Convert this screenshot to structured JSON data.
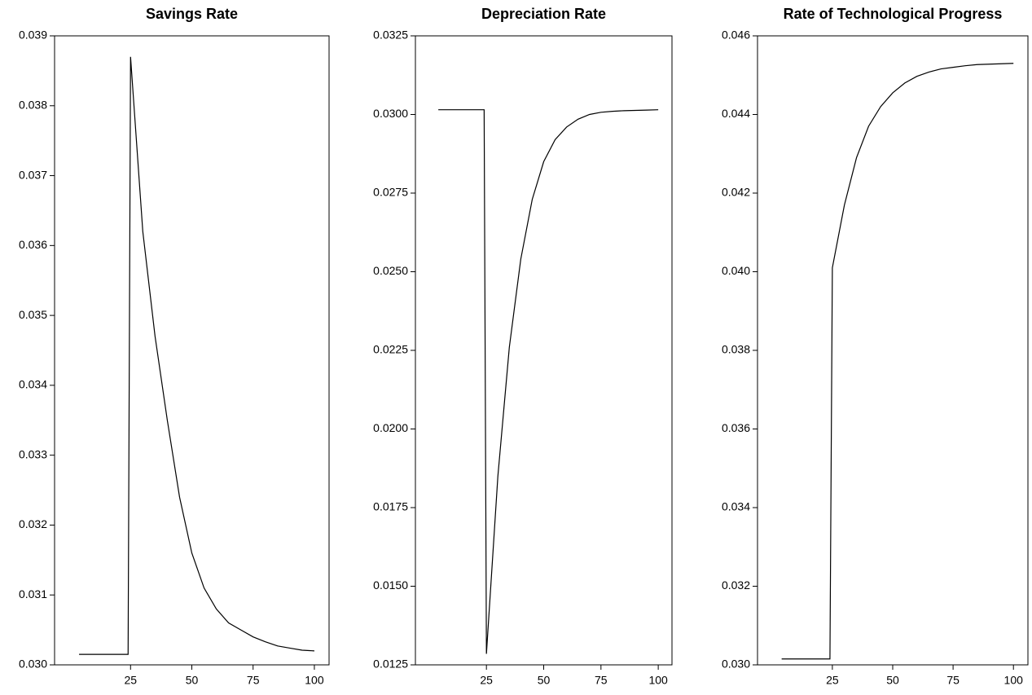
{
  "chart_data": [
    {
      "type": "line",
      "title": "Savings Rate",
      "x": [
        4,
        24,
        25,
        30,
        35,
        40,
        45,
        50,
        55,
        60,
        65,
        70,
        75,
        80,
        85,
        90,
        95,
        100
      ],
      "values": [
        0.03015,
        0.03015,
        0.0387,
        0.0362,
        0.0347,
        0.0335,
        0.0324,
        0.0316,
        0.0311,
        0.0308,
        0.0306,
        0.0305,
        0.0304,
        0.03033,
        0.03027,
        0.03024,
        0.03021,
        0.0302
      ],
      "color": "#000000",
      "xlim": [
        -6,
        106
      ],
      "xticks": [
        25,
        50,
        75,
        100
      ],
      "ylim": [
        0.03,
        0.039
      ],
      "yticks": [
        {
          "value": 0.03,
          "label": "0.030"
        },
        0.031,
        0.032,
        0.033,
        0.034,
        0.035,
        0.036,
        0.037,
        0.038,
        0.039
      ]
    },
    {
      "type": "line",
      "title": "Depreciation Rate",
      "x": [
        4,
        24,
        25,
        30,
        35,
        40,
        45,
        50,
        55,
        60,
        65,
        70,
        75,
        80,
        85,
        90,
        95,
        100
      ],
      "values": [
        0.03015,
        0.03015,
        0.01285,
        0.0185,
        0.0226,
        0.0254,
        0.0273,
        0.0285,
        0.0292,
        0.0296,
        0.02985,
        0.03,
        0.03007,
        0.0301,
        0.03012,
        0.03013,
        0.03014,
        0.03015
      ],
      "color": "#000000",
      "xlim": [
        -6,
        106
      ],
      "xticks": [
        25,
        50,
        75,
        100
      ],
      "ylim": [
        0.0125,
        0.0325
      ],
      "yticks": [
        0.0125,
        {
          "value": 0.015,
          "label": "0.0150"
        },
        0.0175,
        {
          "value": 0.02,
          "label": "0.0200"
        },
        0.0225,
        {
          "value": 0.025,
          "label": "0.0250"
        },
        0.0275,
        {
          "value": 0.03,
          "label": "0.0300"
        },
        0.0325
      ]
    },
    {
      "type": "line",
      "title": "Rate of Technological Progress",
      "x": [
        4,
        24,
        25,
        30,
        35,
        40,
        45,
        50,
        55,
        60,
        65,
        70,
        75,
        80,
        85,
        90,
        95,
        100
      ],
      "values": [
        0.03015,
        0.03015,
        0.0401,
        0.0417,
        0.0429,
        0.0437,
        0.0442,
        0.04455,
        0.0448,
        0.04497,
        0.04508,
        0.04516,
        0.0452,
        0.04524,
        0.04527,
        0.04528,
        0.04529,
        0.0453
      ],
      "color": "#000000",
      "xlim": [
        -6,
        106
      ],
      "xticks": [
        25,
        50,
        75,
        100
      ],
      "ylim": [
        0.03,
        0.046
      ],
      "yticks": [
        {
          "value": 0.03,
          "label": "0.030"
        },
        0.032,
        0.034,
        0.036,
        0.038,
        {
          "value": 0.04,
          "label": "0.040"
        },
        0.042,
        0.044,
        0.046
      ]
    }
  ]
}
